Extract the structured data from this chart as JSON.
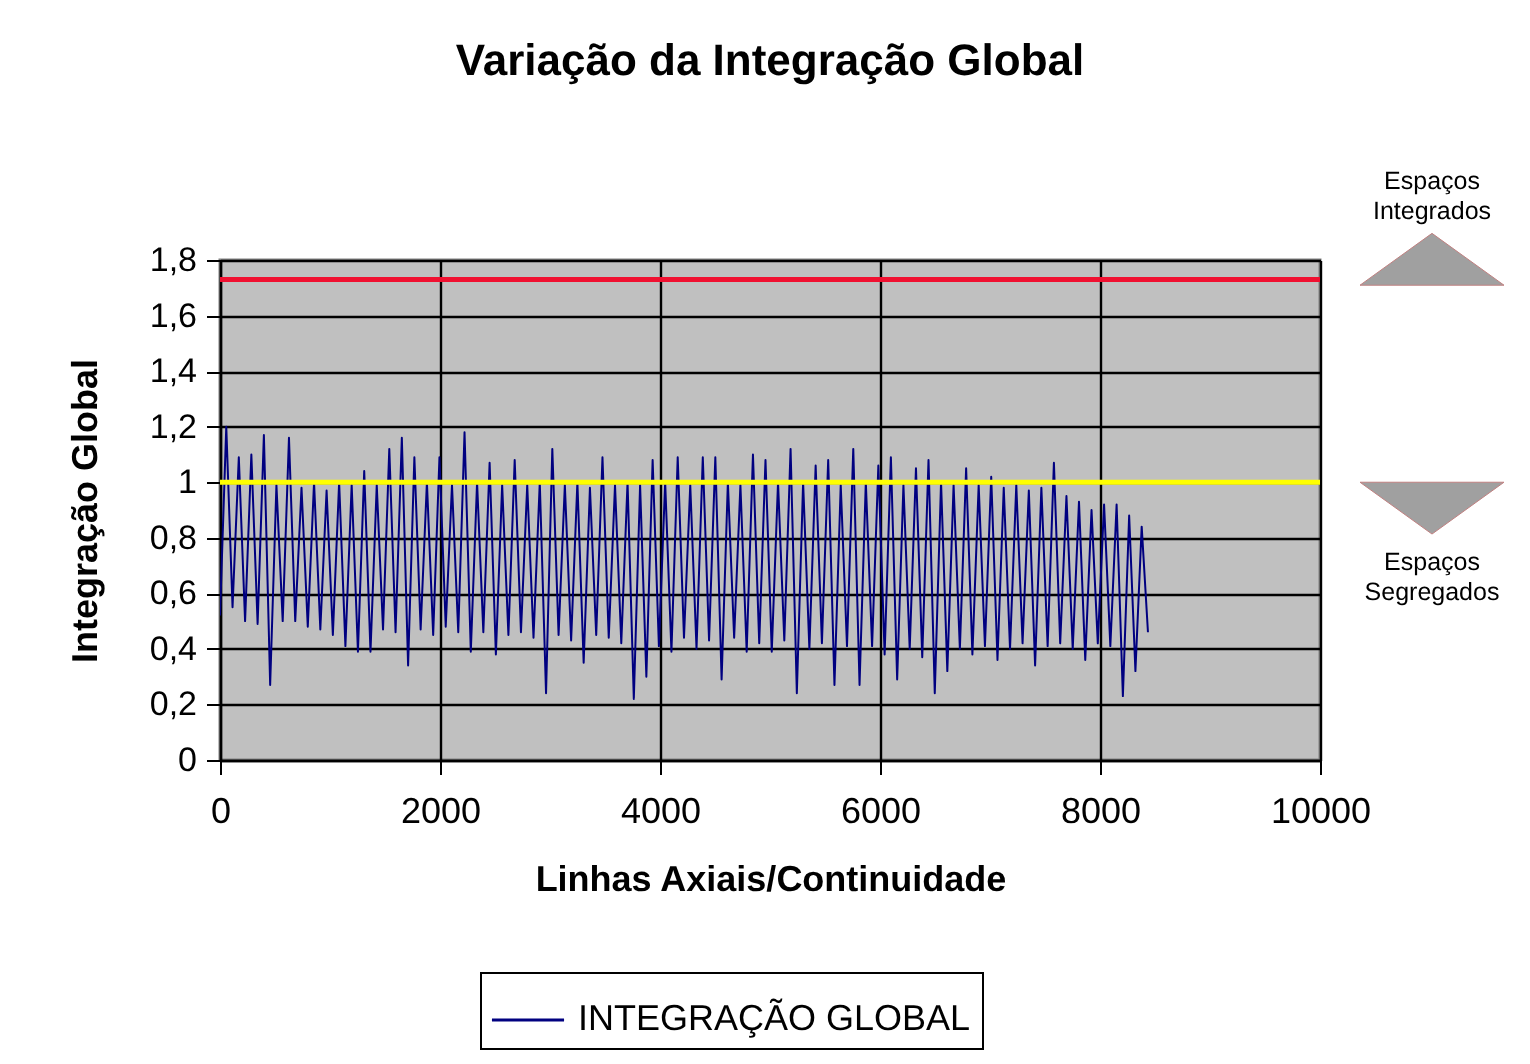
{
  "chart_data": {
    "type": "line",
    "title": "Variação da Integração Global",
    "xlabel": "Linhas Axiais/Continuidade",
    "ylabel": "Integração Global",
    "x": [
      0,
      57,
      114,
      171,
      228,
      285,
      342,
      399,
      456,
      513,
      570,
      627,
      684,
      741,
      798,
      855,
      912,
      969,
      1026,
      1083,
      1140,
      1197,
      1254,
      1311,
      1368,
      1425,
      1482,
      1539,
      1596,
      1653,
      1710,
      1767,
      1824,
      1881,
      1938,
      1995,
      2052,
      2109,
      2166,
      2223,
      2280,
      2337,
      2394,
      2451,
      2508,
      2565,
      2622,
      2679,
      2736,
      2793,
      2850,
      2907,
      2964,
      3021,
      3078,
      3135,
      3192,
      3249,
      3306,
      3363,
      3420,
      3477,
      3534,
      3591,
      3648,
      3705,
      3762,
      3819,
      3876,
      3933,
      3990,
      4047,
      4104,
      4161,
      4218,
      4275,
      4332,
      4389,
      4446,
      4503,
      4560,
      4617,
      4674,
      4731,
      4788,
      4845,
      4902,
      4959,
      5016,
      5073,
      5130,
      5187,
      5244,
      5301,
      5358,
      5415,
      5472,
      5529,
      5586,
      5643,
      5700,
      5757,
      5814,
      5871,
      5928,
      5985,
      6042,
      6099,
      6156,
      6213,
      6270,
      6327,
      6384,
      6441,
      6498,
      6555,
      6612,
      6669,
      6726,
      6783,
      6840,
      6897,
      6954,
      7011,
      7068,
      7125,
      7182,
      7239,
      7296,
      7353,
      7410,
      7467,
      7524,
      7581,
      7638,
      7695,
      7752,
      7809,
      7866,
      7923,
      7980,
      8037,
      8094,
      8151,
      8208,
      8265,
      8322,
      8379,
      8436
    ],
    "series": [
      {
        "name": "INTEGRAÇÃO GLOBAL",
        "color": "#000080",
        "values": [
          0.52,
          1.2,
          0.55,
          1.09,
          0.5,
          1.1,
          0.49,
          1.17,
          0.27,
          0.99,
          0.5,
          1.16,
          0.5,
          0.98,
          0.48,
          1.0,
          0.47,
          0.97,
          0.45,
          1.0,
          0.41,
          0.99,
          0.39,
          1.04,
          0.39,
          0.99,
          0.47,
          1.12,
          0.46,
          1.16,
          0.34,
          1.09,
          0.47,
          1.0,
          0.45,
          1.09,
          0.48,
          0.99,
          0.46,
          1.18,
          0.39,
          1.0,
          0.46,
          1.07,
          0.38,
          0.99,
          0.45,
          1.08,
          0.46,
          0.99,
          0.44,
          1.0,
          0.24,
          1.12,
          0.45,
          0.99,
          0.43,
          1.0,
          0.35,
          0.98,
          0.45,
          1.09,
          0.44,
          0.99,
          0.42,
          1.0,
          0.22,
          0.99,
          0.3,
          1.08,
          0.41,
          1.0,
          0.39,
          1.09,
          0.44,
          0.99,
          0.4,
          1.09,
          0.43,
          1.09,
          0.29,
          1.0,
          0.44,
          0.99,
          0.39,
          1.1,
          0.42,
          1.08,
          0.39,
          1.0,
          0.43,
          1.12,
          0.24,
          1.0,
          0.4,
          1.06,
          0.42,
          1.08,
          0.27,
          0.99,
          0.41,
          1.12,
          0.27,
          1.0,
          0.41,
          1.06,
          0.38,
          1.09,
          0.29,
          0.99,
          0.4,
          1.05,
          0.37,
          1.08,
          0.24,
          1.0,
          0.32,
          0.99,
          0.4,
          1.05,
          0.38,
          0.99,
          0.41,
          1.02,
          0.36,
          0.98,
          0.4,
          0.99,
          0.42,
          0.97,
          0.34,
          0.98,
          0.41,
          1.07,
          0.42,
          0.95,
          0.4,
          0.93,
          0.36,
          0.9,
          0.42,
          0.92,
          0.41,
          0.92,
          0.23,
          0.88,
          0.32,
          0.84,
          0.46
        ]
      }
    ],
    "xlim": [
      0,
      10000
    ],
    "ylim": [
      0,
      1.8
    ],
    "xticks": [
      0,
      2000,
      4000,
      6000,
      8000,
      10000
    ],
    "yticks": [
      0,
      {
        "value": 0.2,
        "label": "0,2"
      },
      {
        "value": 0.4,
        "label": "0,4"
      },
      {
        "value": 0.6,
        "label": "0,6"
      },
      {
        "value": 0.8,
        "label": "0,8"
      },
      1,
      {
        "value": 1.2,
        "label": "1,2"
      },
      {
        "value": 1.4,
        "label": "1,4"
      },
      {
        "value": 1.6,
        "label": "1,6"
      },
      {
        "value": 1.8,
        "label": "1,8"
      }
    ],
    "ref_lines": [
      {
        "axis": "y",
        "value": 1.73,
        "color": "#f01030"
      },
      {
        "axis": "y",
        "value": 1,
        "color": "#ffff00"
      }
    ],
    "annotations": [
      "Espaços Integrados",
      "Espaços Segregados"
    ],
    "grid": true,
    "legend": "bottom",
    "line_style": "solid"
  }
}
